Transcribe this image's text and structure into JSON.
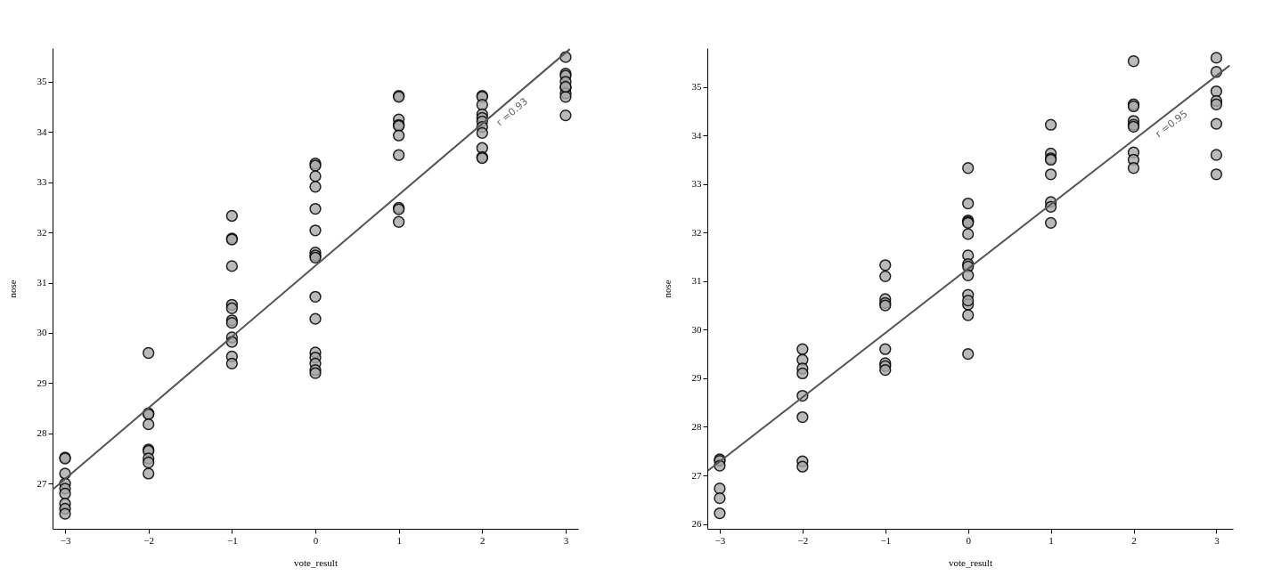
{
  "chart_data": [
    {
      "type": "scatter",
      "xlabel": "vote_result",
      "ylabel": "nose",
      "xlim": [
        -3.15,
        3.15
      ],
      "ylim": [
        26.1,
        35.67
      ],
      "xticks": [
        -3,
        -2,
        -1,
        0,
        1,
        2,
        3
      ],
      "yticks": [
        27,
        28,
        29,
        30,
        31,
        32,
        33,
        34,
        35
      ],
      "annotations": [
        "r =0.93"
      ],
      "series": [
        {
          "color": "#a9a9a9",
          "marker": "circle",
          "x": [
            -3,
            -3,
            -3,
            -3,
            -3,
            -3,
            -3,
            -3,
            -3,
            -2,
            -2,
            -2,
            -2,
            -2,
            -2,
            -2,
            -2,
            -2,
            -1,
            -1,
            -1,
            -1,
            -1,
            -1,
            -1,
            -1,
            -1,
            -1,
            -1,
            -1,
            0,
            0,
            0,
            0,
            0,
            0,
            0,
            0,
            0,
            0,
            0,
            0,
            0,
            0,
            0,
            0,
            1,
            1,
            1,
            1,
            1,
            1,
            1,
            1,
            1,
            1,
            2,
            2,
            2,
            2,
            2,
            2,
            2,
            2,
            2,
            2,
            2,
            3,
            3,
            3,
            3,
            3,
            3,
            3,
            3,
            3
          ],
          "values": [
            27.52,
            27.5,
            27.2,
            27.0,
            26.9,
            26.8,
            26.6,
            26.5,
            26.4,
            29.6,
            28.4,
            28.38,
            28.18,
            27.68,
            27.65,
            27.5,
            27.42,
            27.2,
            32.33,
            31.88,
            31.86,
            31.33,
            30.56,
            30.49,
            30.25,
            30.2,
            29.91,
            29.82,
            29.53,
            29.39,
            33.37,
            33.33,
            33.12,
            32.91,
            32.47,
            32.04,
            31.6,
            31.54,
            31.5,
            30.72,
            30.28,
            29.61,
            29.51,
            29.39,
            29.26,
            29.2,
            34.72,
            34.7,
            34.25,
            34.14,
            34.12,
            33.93,
            33.54,
            32.49,
            32.46,
            32.21,
            34.72,
            34.7,
            34.54,
            34.35,
            34.28,
            34.21,
            34.1,
            33.98,
            33.68,
            33.5,
            33.48,
            35.49,
            35.16,
            35.12,
            35.0,
            34.88,
            34.77,
            34.7,
            34.33,
            34.9
          ]
        },
        {
          "type": "line",
          "color": "#555555",
          "x": [
            -3.15,
            3.05
          ],
          "values": [
            26.88,
            35.65
          ]
        }
      ]
    },
    {
      "type": "scatter",
      "xlabel": "vote_result",
      "ylabel": "nose",
      "xlim": [
        -3.15,
        3.2
      ],
      "ylim": [
        25.9,
        35.8
      ],
      "xticks": [
        -3,
        -2,
        -1,
        0,
        1,
        2,
        3
      ],
      "yticks": [
        26,
        27,
        28,
        29,
        30,
        31,
        32,
        33,
        34,
        35
      ],
      "annotations": [
        "r =0.95"
      ],
      "series": [
        {
          "color": "#a9a9a9",
          "marker": "circle",
          "x": [
            -3,
            -3,
            -3,
            -3,
            -3,
            -3,
            -2,
            -2,
            -2,
            -2,
            -2,
            -2,
            -2,
            -2,
            -1,
            -1,
            -1,
            -1,
            -1,
            -1,
            -1,
            -1,
            -1,
            0,
            0,
            0,
            0,
            0,
            0,
            0,
            0,
            0,
            0,
            0,
            0,
            0,
            0,
            0,
            1,
            1,
            1,
            1,
            1,
            1,
            1,
            1,
            2,
            2,
            2,
            2,
            2,
            2,
            2,
            2,
            2,
            3,
            3,
            3,
            3,
            3,
            3,
            3,
            3
          ],
          "values": [
            27.33,
            27.3,
            27.2,
            26.73,
            26.53,
            26.22,
            29.6,
            29.38,
            29.2,
            29.1,
            28.64,
            28.2,
            27.29,
            27.18,
            31.33,
            31.1,
            30.63,
            30.55,
            30.5,
            29.6,
            29.31,
            29.25,
            29.17,
            33.33,
            32.6,
            32.25,
            32.22,
            32.2,
            31.97,
            31.53,
            31.35,
            31.3,
            31.12,
            30.72,
            30.52,
            30.3,
            29.5,
            30.6,
            34.22,
            33.63,
            33.53,
            33.5,
            33.2,
            32.63,
            32.53,
            32.2,
            35.53,
            34.64,
            34.6,
            34.3,
            34.22,
            34.18,
            33.65,
            33.5,
            33.33,
            35.6,
            35.31,
            34.91,
            34.71,
            34.64,
            34.24,
            33.6,
            33.2
          ]
        },
        {
          "type": "line",
          "color": "#555555",
          "x": [
            -3.14,
            3.16
          ],
          "values": [
            27.1,
            35.44
          ]
        }
      ]
    }
  ]
}
